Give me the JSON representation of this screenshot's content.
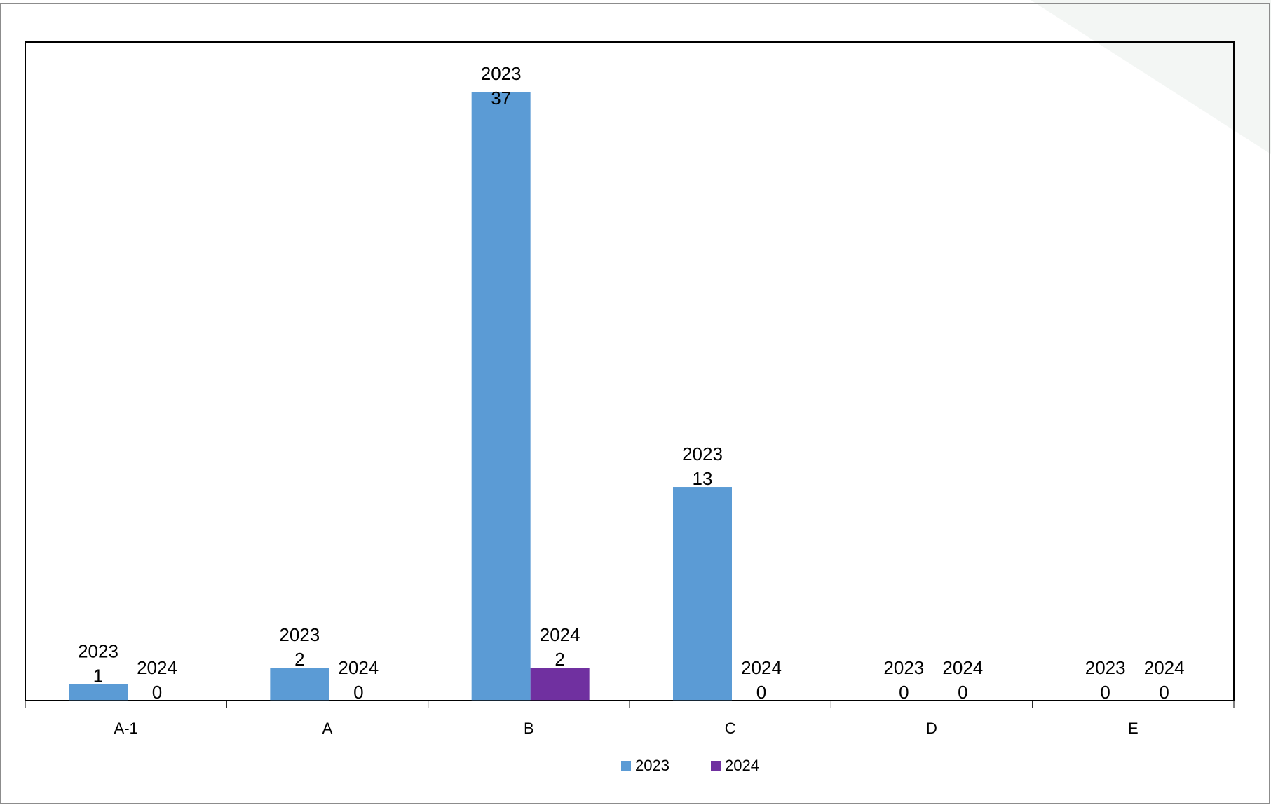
{
  "chart_data": {
    "type": "bar",
    "categories": [
      "A-1",
      "A",
      "B",
      "C",
      "D",
      "E"
    ],
    "series": [
      {
        "name": "2023",
        "values": [
          1,
          2,
          37,
          13,
          0,
          0
        ],
        "color": "#5B9BD5"
      },
      {
        "name": "2024",
        "values": [
          0,
          0,
          2,
          0,
          0,
          0
        ],
        "color": "#7030A0"
      }
    ],
    "ylim": [
      0,
      40
    ],
    "grid": false,
    "legend": "bottom-center",
    "data_labels": true,
    "title": "",
    "xlabel": "",
    "ylabel": ""
  }
}
